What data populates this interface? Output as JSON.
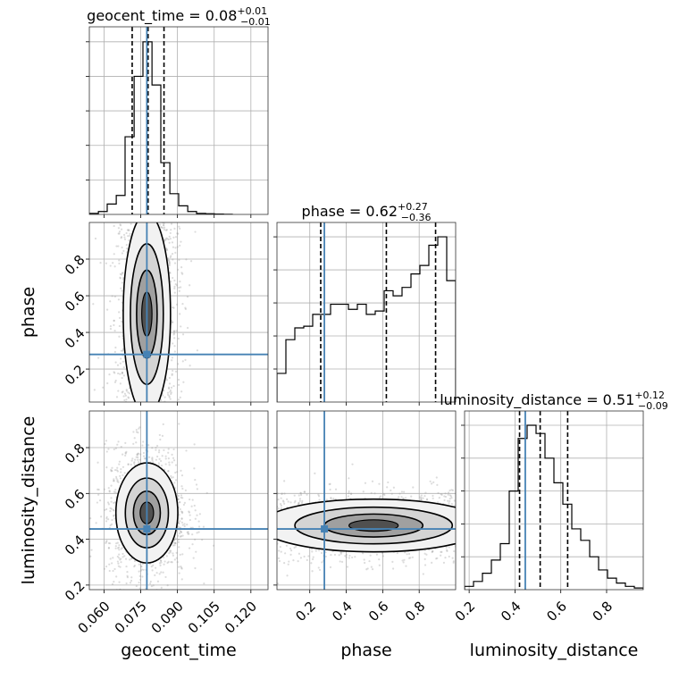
{
  "chart_data": {
    "type": "corner",
    "parameters": [
      "geocent_time",
      "phase",
      "luminosity_distance"
    ],
    "truth": {
      "geocent_time": 0.0775,
      "phase": 0.28,
      "luminosity_distance": 0.445
    },
    "truth_color": "#4682b4",
    "axes": {
      "geocent_time": {
        "range": [
          0.054,
          0.127
        ],
        "ticks": [
          0.06,
          0.075,
          0.09,
          0.105,
          0.12
        ],
        "tick_labels": [
          "0.060",
          "0.075",
          "0.090",
          "0.105",
          "0.120"
        ]
      },
      "phase": {
        "range": [
          0.02,
          1.0
        ],
        "ticks": [
          0.2,
          0.4,
          0.6,
          0.8
        ],
        "tick_labels": [
          "0.2",
          "0.4",
          "0.6",
          "0.8"
        ]
      },
      "luminosity_distance": {
        "range": [
          0.18,
          0.96
        ],
        "ticks": [
          0.2,
          0.4,
          0.6,
          0.8
        ],
        "tick_labels": [
          "0.2",
          "0.4",
          "0.6",
          "0.8"
        ]
      }
    },
    "titles": [
      {
        "param": "geocent_time",
        "main": "geocent_time = 0.08",
        "sup": "+0.01",
        "sub": "−0.01"
      },
      {
        "param": "phase",
        "main": "phase = 0.62",
        "sup": "+0.27",
        "sub": "−0.36"
      },
      {
        "param": "luminosity_distance",
        "main": "luminosity_distance = 0.51",
        "sup": "+0.12",
        "sub": "−0.09"
      }
    ],
    "quantiles": {
      "geocent_time": [
        0.0715,
        0.078,
        0.0845
      ],
      "phase": [
        0.26,
        0.62,
        0.89
      ],
      "luminosity_distance": [
        0.42,
        0.51,
        0.63
      ]
    },
    "histograms": {
      "geocent_time": {
        "edges": [
          0.054,
          0.0577,
          0.0613,
          0.065,
          0.0686,
          0.0723,
          0.0759,
          0.0796,
          0.0832,
          0.0869,
          0.0905,
          0.0942,
          0.0978,
          0.1015,
          0.1051,
          0.1088,
          0.1124
        ],
        "counts": [
          0.006,
          0.017,
          0.06,
          0.11,
          0.45,
          0.8,
          1.0,
          0.75,
          0.3,
          0.12,
          0.05,
          0.017,
          0.006,
          0.004,
          0.002,
          0.001
        ]
      },
      "phase": {
        "edges": [
          0.02,
          0.069,
          0.118,
          0.167,
          0.216,
          0.265,
          0.314,
          0.363,
          0.412,
          0.461,
          0.51,
          0.559,
          0.608,
          0.657,
          0.706,
          0.755,
          0.804,
          0.853,
          0.902,
          0.951,
          1.0
        ],
        "counts": [
          0.17,
          0.37,
          0.44,
          0.45,
          0.52,
          0.52,
          0.58,
          0.58,
          0.55,
          0.58,
          0.52,
          0.54,
          0.66,
          0.63,
          0.68,
          0.76,
          0.81,
          0.93,
          0.98,
          0.72
        ]
      },
      "luminosity_distance": {
        "edges": [
          0.18,
          0.219,
          0.258,
          0.297,
          0.336,
          0.375,
          0.414,
          0.453,
          0.492,
          0.531,
          0.57,
          0.609,
          0.648,
          0.687,
          0.726,
          0.765,
          0.804,
          0.843,
          0.882,
          0.921,
          0.96
        ],
        "counts": [
          0.02,
          0.05,
          0.1,
          0.18,
          0.28,
          0.6,
          0.92,
          1.0,
          0.95,
          0.8,
          0.65,
          0.52,
          0.37,
          0.3,
          0.2,
          0.12,
          0.07,
          0.04,
          0.02,
          0.01
        ]
      }
    },
    "joint_2d": [
      {
        "x": "geocent_time",
        "y": "phase",
        "center": [
          0.0775,
          0.5
        ],
        "sd": [
          0.0042,
          0.24
        ]
      },
      {
        "x": "geocent_time",
        "y": "luminosity_distance",
        "center": [
          0.0775,
          0.515
        ],
        "sd": [
          0.0055,
          0.095
        ]
      },
      {
        "x": "phase",
        "y": "luminosity_distance",
        "center": [
          0.55,
          0.46
        ],
        "sd": [
          0.27,
          0.05
        ]
      }
    ]
  }
}
